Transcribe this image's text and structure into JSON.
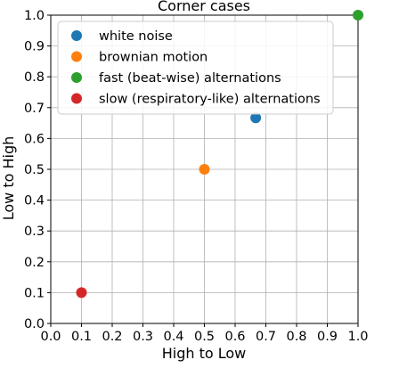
{
  "chart_data": {
    "type": "scatter",
    "title": "Corner cases",
    "xlabel": "High to Low",
    "ylabel": "Low to High",
    "xlim": [
      0.0,
      1.0
    ],
    "ylim": [
      0.0,
      1.0
    ],
    "xticks": [
      "0.0",
      "0.1",
      "0.2",
      "0.3",
      "0.4",
      "0.5",
      "0.6",
      "0.7",
      "0.8",
      "0.9",
      "1.0"
    ],
    "yticks": [
      "0.0",
      "0.1",
      "0.2",
      "0.3",
      "0.4",
      "0.5",
      "0.6",
      "0.7",
      "0.8",
      "0.9",
      "1.0"
    ],
    "grid": true,
    "legend_position": "top-left",
    "series": [
      {
        "name": "white noise",
        "color": "#1f77b4",
        "points": [
          {
            "x": 0.667,
            "y": 0.667
          }
        ]
      },
      {
        "name": "brownian motion",
        "color": "#ff7f0e",
        "points": [
          {
            "x": 0.5,
            "y": 0.5
          }
        ]
      },
      {
        "name": "fast (beat-wise) alternations",
        "color": "#2ca02c",
        "points": [
          {
            "x": 1.0,
            "y": 1.0
          }
        ]
      },
      {
        "name": "slow (respiratory-like) alternations",
        "color": "#d62728",
        "points": [
          {
            "x": 0.1,
            "y": 0.1
          }
        ]
      }
    ]
  }
}
